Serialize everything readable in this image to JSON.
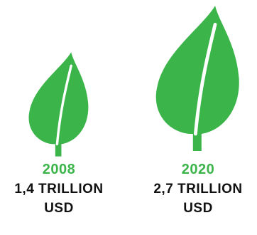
{
  "colors": {
    "accent": "#3bb54a",
    "text": "#111111",
    "background": "#ffffff"
  },
  "items": [
    {
      "icon": "leaf-icon",
      "year": "2008",
      "amount_line1": "1,4 TRILLION",
      "amount_line2": "USD"
    },
    {
      "icon": "leaf-icon",
      "year": "2020",
      "amount_line1": "2,7 TRILLION",
      "amount_line2": "USD"
    }
  ]
}
